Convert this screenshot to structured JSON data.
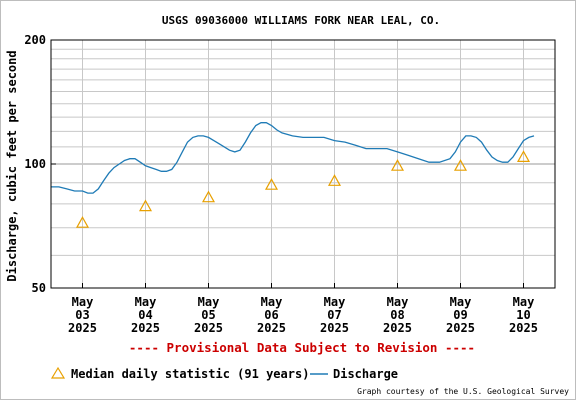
{
  "chart_data": {
    "type": "line",
    "title": "USGS 09036000 WILLIAMS FORK NEAR LEAL, CO.",
    "ylabel": "Discharge, cubic feet per second",
    "xlabel": "",
    "y_scale": "log",
    "ylim": [
      50,
      200
    ],
    "y_ticks": [
      "200",
      "100",
      "50"
    ],
    "y_tick_values": [
      200,
      100,
      50
    ],
    "y_minor_grid": [
      60,
      70,
      80,
      90,
      110,
      120,
      130,
      140,
      150,
      160,
      170,
      180,
      190
    ],
    "x_ticks": [
      {
        "month": "May",
        "day": "03",
        "year": "2025",
        "date": "2025-05-03"
      },
      {
        "month": "May",
        "day": "04",
        "year": "2025",
        "date": "2025-05-04"
      },
      {
        "month": "May",
        "day": "05",
        "year": "2025",
        "date": "2025-05-05"
      },
      {
        "month": "May",
        "day": "06",
        "year": "2025",
        "date": "2025-05-06"
      },
      {
        "month": "May",
        "day": "07",
        "year": "2025",
        "date": "2025-05-07"
      },
      {
        "month": "May",
        "day": "08",
        "year": "2025",
        "date": "2025-05-08"
      },
      {
        "month": "May",
        "day": "09",
        "year": "2025",
        "date": "2025-05-09"
      },
      {
        "month": "May",
        "day": "10",
        "year": "2025",
        "date": "2025-05-10"
      }
    ],
    "xlim": [
      "2025-05-02 12:00",
      "2025-05-10 12:00"
    ],
    "grid": true,
    "series": [
      {
        "name": "Discharge",
        "color": "#1f7bb6",
        "points": [
          [
            "2025-05-02 12:00",
            88
          ],
          [
            "2025-05-02 15:00",
            88
          ],
          [
            "2025-05-02 18:00",
            87
          ],
          [
            "2025-05-02 21:00",
            86
          ],
          [
            "2025-05-03 00:00",
            86
          ],
          [
            "2025-05-03 02:00",
            85
          ],
          [
            "2025-05-03 04:00",
            85
          ],
          [
            "2025-05-03 06:00",
            87
          ],
          [
            "2025-05-03 08:00",
            91
          ],
          [
            "2025-05-03 10:00",
            95
          ],
          [
            "2025-05-03 12:00",
            98
          ],
          [
            "2025-05-03 14:00",
            100
          ],
          [
            "2025-05-03 16:00",
            102
          ],
          [
            "2025-05-03 18:00",
            103
          ],
          [
            "2025-05-03 20:00",
            103
          ],
          [
            "2025-05-03 22:00",
            101
          ],
          [
            "2025-05-04 00:00",
            99
          ],
          [
            "2025-05-04 02:00",
            98
          ],
          [
            "2025-05-04 04:00",
            97
          ],
          [
            "2025-05-04 06:00",
            96
          ],
          [
            "2025-05-04 08:00",
            96
          ],
          [
            "2025-05-04 10:00",
            97
          ],
          [
            "2025-05-04 12:00",
            101
          ],
          [
            "2025-05-04 14:00",
            107
          ],
          [
            "2025-05-04 16:00",
            113
          ],
          [
            "2025-05-04 18:00",
            116
          ],
          [
            "2025-05-04 20:00",
            117
          ],
          [
            "2025-05-04 22:00",
            117
          ],
          [
            "2025-05-05 00:00",
            116
          ],
          [
            "2025-05-05 02:00",
            114
          ],
          [
            "2025-05-05 04:00",
            112
          ],
          [
            "2025-05-05 06:00",
            110
          ],
          [
            "2025-05-05 08:00",
            108
          ],
          [
            "2025-05-05 10:00",
            107
          ],
          [
            "2025-05-05 12:00",
            108
          ],
          [
            "2025-05-05 14:00",
            113
          ],
          [
            "2025-05-05 16:00",
            119
          ],
          [
            "2025-05-05 18:00",
            124
          ],
          [
            "2025-05-05 20:00",
            126
          ],
          [
            "2025-05-05 22:00",
            126
          ],
          [
            "2025-05-06 00:00",
            124
          ],
          [
            "2025-05-06 02:00",
            121
          ],
          [
            "2025-05-06 04:00",
            119
          ],
          [
            "2025-05-06 06:00",
            118
          ],
          [
            "2025-05-06 08:00",
            117
          ],
          [
            "2025-05-06 12:00",
            116
          ],
          [
            "2025-05-06 16:00",
            116
          ],
          [
            "2025-05-06 20:00",
            116
          ],
          [
            "2025-05-07 00:00",
            114
          ],
          [
            "2025-05-07 04:00",
            113
          ],
          [
            "2025-05-07 08:00",
            111
          ],
          [
            "2025-05-07 12:00",
            109
          ],
          [
            "2025-05-07 16:00",
            109
          ],
          [
            "2025-05-07 20:00",
            109
          ],
          [
            "2025-05-08 00:00",
            107
          ],
          [
            "2025-05-08 04:00",
            105
          ],
          [
            "2025-05-08 08:00",
            103
          ],
          [
            "2025-05-08 12:00",
            101
          ],
          [
            "2025-05-08 16:00",
            101
          ],
          [
            "2025-05-08 20:00",
            103
          ],
          [
            "2025-05-08 22:00",
            107
          ],
          [
            "2025-05-09 00:00",
            113
          ],
          [
            "2025-05-09 02:00",
            117
          ],
          [
            "2025-05-09 04:00",
            117
          ],
          [
            "2025-05-09 06:00",
            116
          ],
          [
            "2025-05-09 08:00",
            113
          ],
          [
            "2025-05-09 10:00",
            108
          ],
          [
            "2025-05-09 12:00",
            104
          ],
          [
            "2025-05-09 14:00",
            102
          ],
          [
            "2025-05-09 16:00",
            101
          ],
          [
            "2025-05-09 18:00",
            101
          ],
          [
            "2025-05-09 20:00",
            104
          ],
          [
            "2025-05-09 22:00",
            109
          ],
          [
            "2025-05-10 00:00",
            114
          ],
          [
            "2025-05-10 02:00",
            116
          ],
          [
            "2025-05-10 04:00",
            117
          ]
        ]
      },
      {
        "name": "Median daily statistic (91 years)",
        "color": "#e8a000",
        "marker": "triangle",
        "points": [
          [
            "2025-05-03 00:00",
            72
          ],
          [
            "2025-05-04 00:00",
            79
          ],
          [
            "2025-05-05 00:00",
            83
          ],
          [
            "2025-05-06 00:00",
            89
          ],
          [
            "2025-05-07 00:00",
            91
          ],
          [
            "2025-05-08 00:00",
            99
          ],
          [
            "2025-05-09 00:00",
            99
          ],
          [
            "2025-05-10 00:00",
            104
          ]
        ]
      }
    ],
    "annotations": {
      "provisional": "---- Provisional Data Subject to Revision ----",
      "credit": "Graph courtesy of the U.S. Geological Survey"
    },
    "legend": [
      {
        "label": "Median daily statistic (91 years)",
        "marker": "triangle",
        "color": "#e8a000"
      },
      {
        "label": "Discharge",
        "marker": "line",
        "color": "#1f7bb6"
      }
    ],
    "legend_position": "bottom"
  }
}
